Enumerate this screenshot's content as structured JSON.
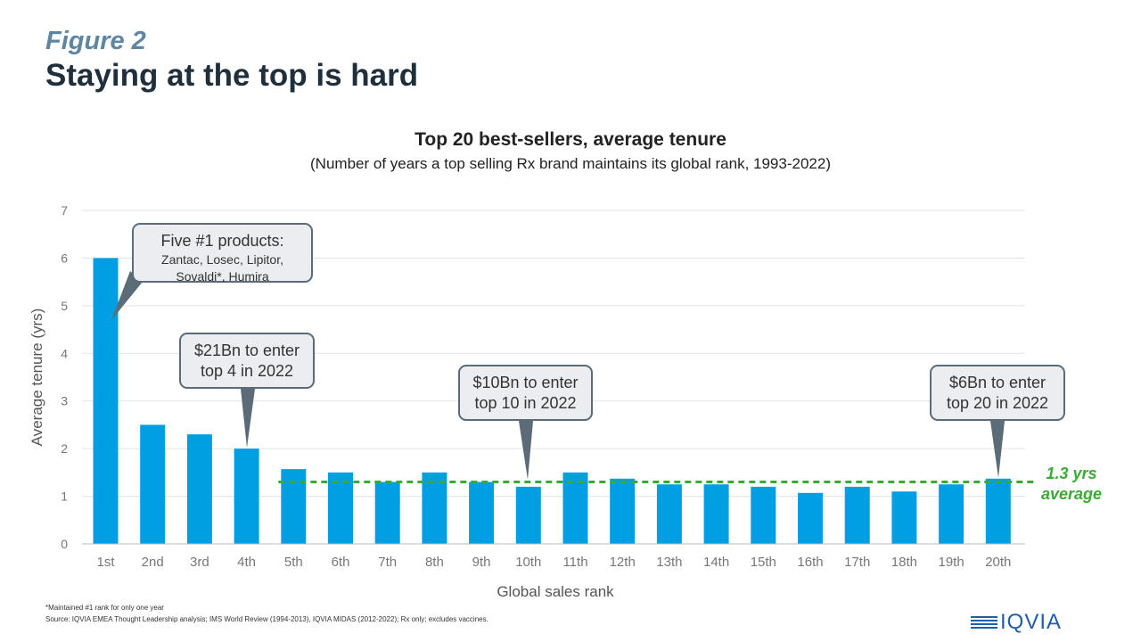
{
  "figure": {
    "label": "Figure 2",
    "title": "Staying at the top is hard"
  },
  "chart_data": {
    "type": "bar",
    "title": "Top 20 best-sellers, average tenure",
    "subtitle": "(Number of years a top selling Rx brand maintains its global rank, 1993-2022)",
    "xlabel": "Global sales rank",
    "ylabel": "Average tenure (yrs)",
    "ylim": [
      0,
      7
    ],
    "yticks": [
      0,
      1,
      2,
      3,
      4,
      5,
      6,
      7
    ],
    "grid": true,
    "categories": [
      "1st",
      "2nd",
      "3rd",
      "4th",
      "5th",
      "6th",
      "7th",
      "8th",
      "9th",
      "10th",
      "11th",
      "12th",
      "13th",
      "14th",
      "15th",
      "16th",
      "17th",
      "18th",
      "19th",
      "20th"
    ],
    "values": [
      6,
      2.5,
      2.3,
      2.0,
      1.57,
      1.5,
      1.3,
      1.5,
      1.3,
      1.2,
      1.5,
      1.37,
      1.25,
      1.25,
      1.2,
      1.07,
      1.2,
      1.1,
      1.25,
      1.37
    ],
    "bar_color": "#009fe3",
    "average": {
      "value": 1.3,
      "line": "1.3 yrs",
      "word": "average",
      "color": "#3aaa35"
    }
  },
  "callouts": {
    "first": {
      "heading": "Five #1 products:",
      "line1": "Zantac, Losec, Lipitor,",
      "line2": "Sovaldi*, Humira"
    },
    "fourth": {
      "line1": "$21Bn to enter",
      "line2": "top 4 in 2022"
    },
    "tenth": {
      "line1": "$10Bn to enter",
      "line2": "top 10 in 2022"
    },
    "twentieth": {
      "line1": "$6Bn to enter",
      "line2": "top 20 in 2022"
    }
  },
  "footnotes": {
    "note": "*Maintained #1 rank for only one year",
    "source": "Source: IQVIA EMEA Thought Leadership analysis; IMS World Review (1994-2013), IQVIA MIDAS (2012-2022); Rx only; excludes vaccines."
  },
  "logo": {
    "text": "IQVIA",
    "color": "#1f5fa6"
  }
}
